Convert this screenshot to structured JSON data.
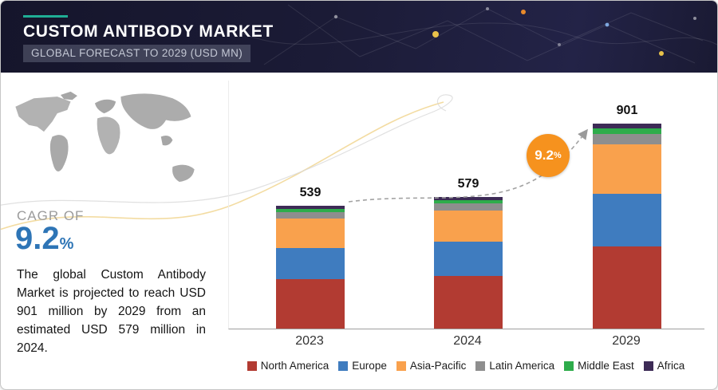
{
  "header": {
    "title": "CUSTOM ANTIBODY MARKET",
    "subtitle": "GLOBAL FORECAST TO 2029 (USD MN)",
    "accent_color": "#1fae95"
  },
  "left_panel": {
    "cagr_label": "CAGR OF",
    "cagr_value": "9.2",
    "cagr_unit": "%",
    "cagr_color": "#2e75b6",
    "description": "The global Custom Antibody Market is projected to reach USD 901 million by 2029 from an estimated USD 579 million in 2024."
  },
  "growth_badge": {
    "value": "9.2",
    "unit": "%",
    "color": "#f6921e"
  },
  "chart_data": {
    "type": "bar",
    "stacked": true,
    "title": "Custom Antibody Market, Global Forecast to 2029 (USD MN)",
    "categories": [
      "2023",
      "2024",
      "2029"
    ],
    "totals": [
      539,
      579,
      901
    ],
    "series": [
      {
        "name": "North America",
        "color": "#b23b32",
        "values": [
          216,
          232,
          360
        ]
      },
      {
        "name": "Europe",
        "color": "#3f7cbf",
        "values": [
          140,
          150,
          234
        ]
      },
      {
        "name": "Asia-Pacific",
        "color": "#f9a14d",
        "values": [
          129,
          139,
          216
        ]
      },
      {
        "name": "Latin America",
        "color": "#8e8e8e",
        "values": [
          27,
          29,
          45
        ]
      },
      {
        "name": "Middle East",
        "color": "#2eac4b",
        "values": [
          16,
          17,
          27
        ]
      },
      {
        "name": "Africa",
        "color": "#3d2b56",
        "values": [
          11,
          12,
          19
        ]
      }
    ],
    "xlabel": "",
    "ylabel": "",
    "ylim": [
      0,
      1000
    ],
    "grid": false,
    "legend_position": "bottom",
    "annotation": "9.2% growth arrow from 2024 to 2029"
  }
}
